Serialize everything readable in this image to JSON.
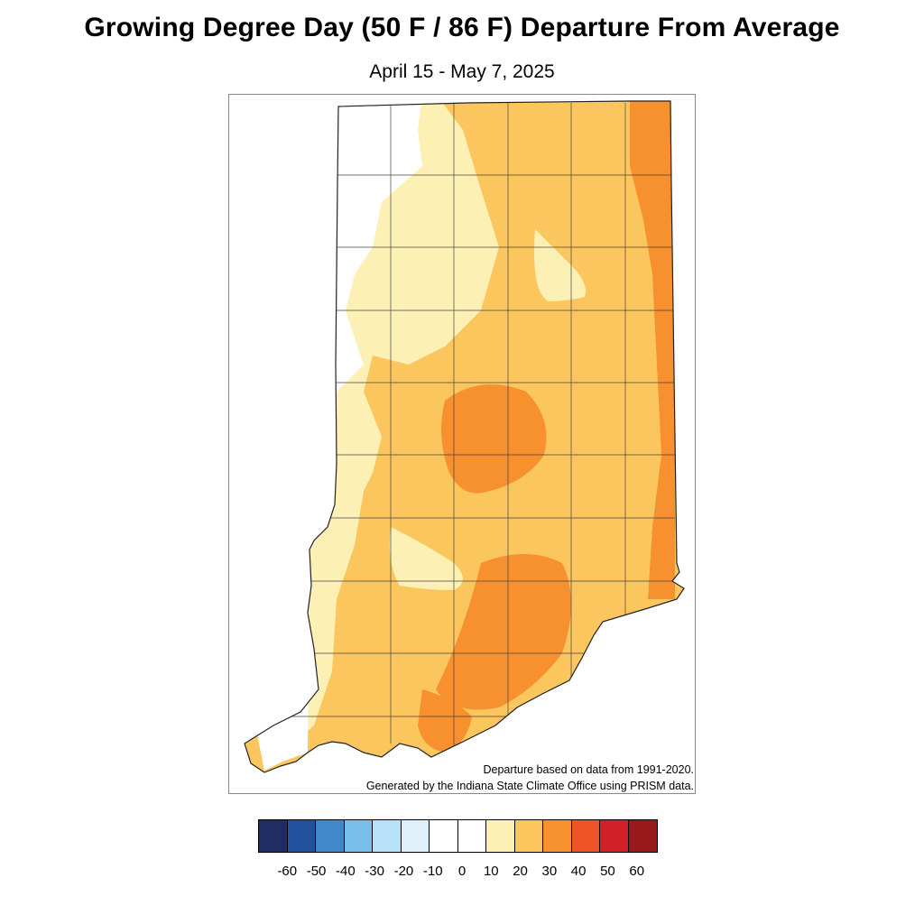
{
  "title": "Growing Degree Day (50 F / 86 F) Departure From Average",
  "subtitle": "April 15 - May 7, 2025",
  "notes": {
    "line1": "Departure based on data from 1991-2020.",
    "line2": "Generated by the Indiana State Climate Office using PRISM data."
  },
  "legend": {
    "colors": [
      "#1f2d64",
      "#22519d",
      "#4188cb",
      "#78bfe9",
      "#b7e1f7",
      "#dff0fa",
      "#ffffff",
      "#ffffff",
      "#fcf0b4",
      "#fcc65e",
      "#f7902f",
      "#ec5427",
      "#d22027",
      "#981a1c"
    ],
    "ticks": [
      "-60",
      "-50",
      "-40",
      "-30",
      "-20",
      "-10",
      "0",
      "10",
      "20",
      "30",
      "40",
      "50",
      "60"
    ]
  },
  "map": {
    "region": "Indiana",
    "fill_colors": {
      "below_10": "#ffffff",
      "10_20": "#fcf0b4",
      "20_30": "#fcc65e",
      "30_40": "#f7902f"
    }
  }
}
